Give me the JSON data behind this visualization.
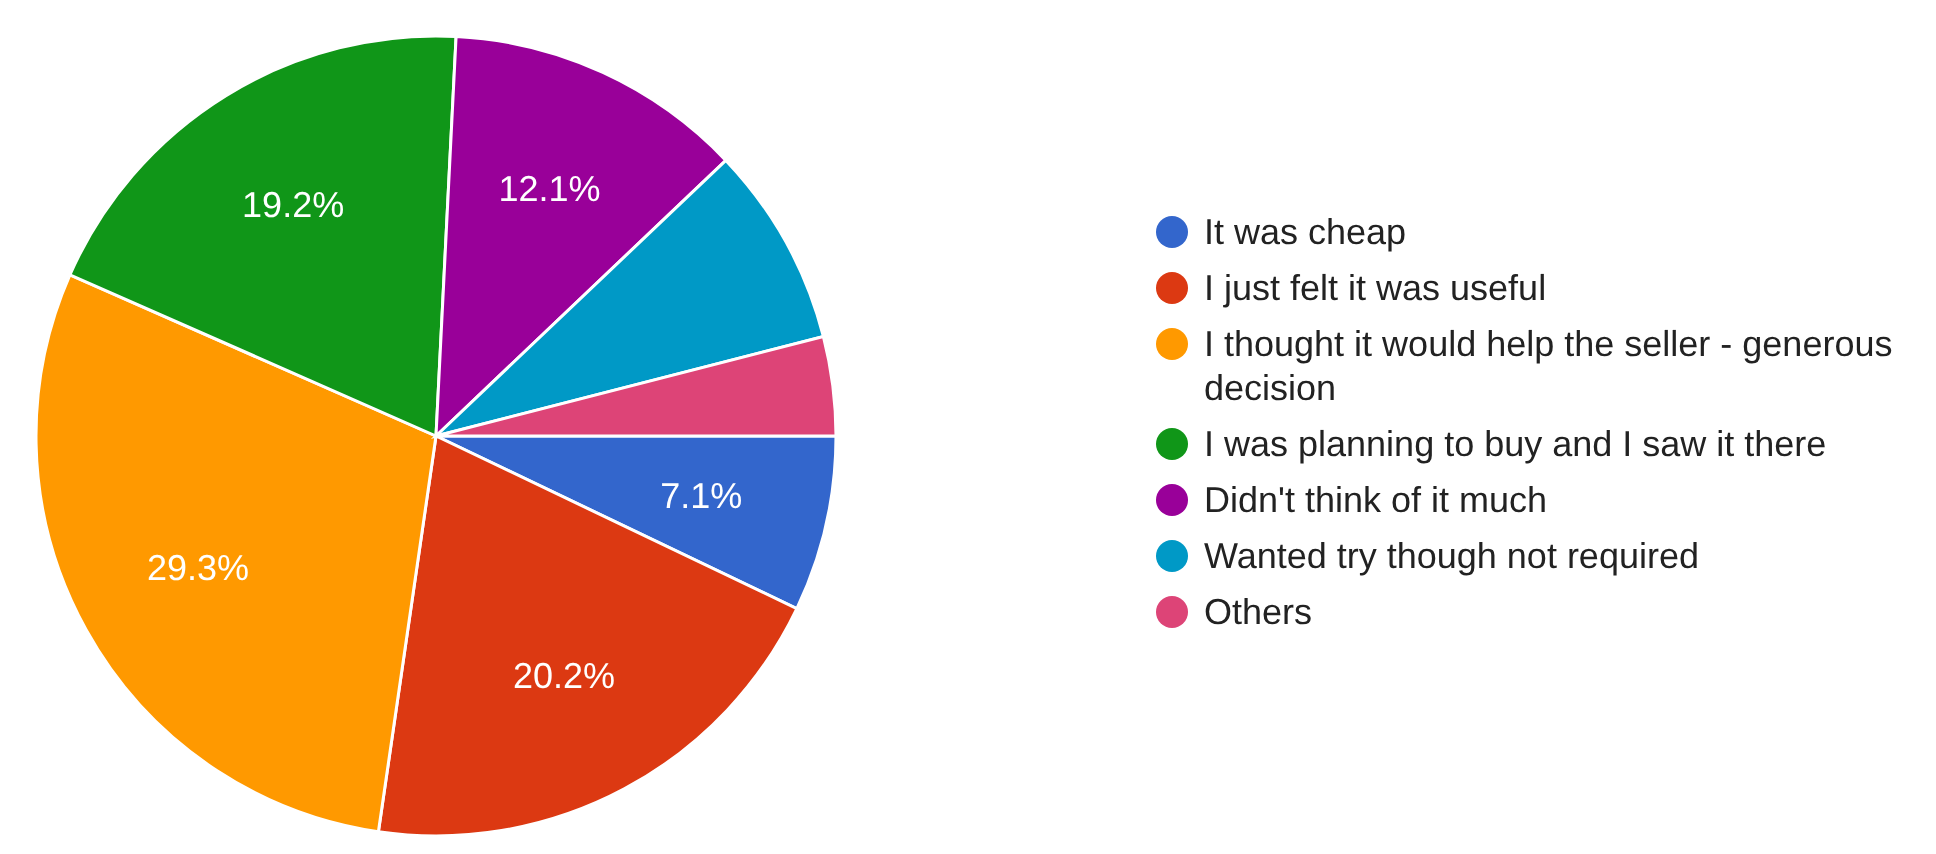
{
  "chart_data": {
    "type": "pie",
    "categories": [
      "It was cheap",
      "I just felt it was useful",
      "I thought it would help the seller - generous decision",
      "I was planning to buy and I saw it there",
      "Didn't think of it much",
      "Wanted try though not required",
      "Others"
    ],
    "values": [
      7.1,
      20.2,
      29.3,
      19.2,
      12.1,
      8.1,
      4.0
    ],
    "colors": [
      "#3366cc",
      "#dc3912",
      "#ff9900",
      "#109618",
      "#990099",
      "#0099c6",
      "#dd4477"
    ],
    "value_labels": [
      "7.1%",
      "20.2%",
      "29.3%",
      "19.2%",
      "12.1%",
      null,
      null
    ],
    "legend": "right"
  }
}
